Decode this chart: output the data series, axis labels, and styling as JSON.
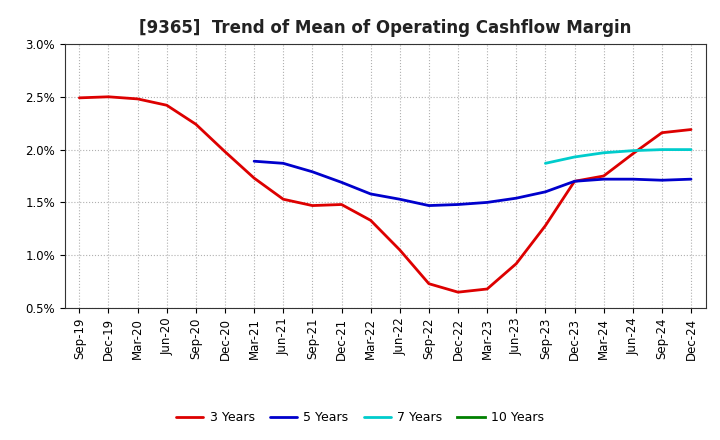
{
  "title": "[9365]  Trend of Mean of Operating Cashflow Margin",
  "ylim": [
    0.005,
    0.03
  ],
  "yticks": [
    0.005,
    0.01,
    0.015,
    0.02,
    0.025,
    0.03
  ],
  "ytick_labels": [
    "0.5%",
    "1.0%",
    "1.5%",
    "2.0%",
    "2.5%",
    "3.0%"
  ],
  "background_color": "#ffffff",
  "grid_color": "#b0b0b0",
  "x_labels": [
    "Sep-19",
    "Dec-19",
    "Mar-20",
    "Jun-20",
    "Sep-20",
    "Dec-20",
    "Mar-21",
    "Jun-21",
    "Sep-21",
    "Dec-21",
    "Mar-22",
    "Jun-22",
    "Sep-22",
    "Dec-22",
    "Mar-23",
    "Jun-23",
    "Sep-23",
    "Dec-23",
    "Mar-24",
    "Jun-24",
    "Sep-24",
    "Dec-24"
  ],
  "series_3y": {
    "color": "#dd0000",
    "label": "3 Years",
    "x": [
      0,
      1,
      2,
      3,
      4,
      5,
      6,
      7,
      8,
      9,
      10,
      11,
      12,
      13,
      14,
      15,
      16,
      17,
      18,
      19,
      20,
      21
    ],
    "y": [
      0.0249,
      0.025,
      0.0248,
      0.0242,
      0.0224,
      0.0198,
      0.0173,
      0.0153,
      0.0147,
      0.0148,
      0.0133,
      0.0105,
      0.0073,
      0.0065,
      0.0068,
      0.0092,
      0.0128,
      0.017,
      0.0175,
      0.0196,
      0.0216,
      0.0219
    ]
  },
  "series_5y": {
    "color": "#0000cc",
    "label": "5 Years",
    "x": [
      6,
      7,
      8,
      9,
      10,
      11,
      12,
      13,
      14,
      15,
      16,
      17,
      18,
      19,
      20,
      21
    ],
    "y": [
      0.0189,
      0.0187,
      0.0179,
      0.0169,
      0.0158,
      0.0153,
      0.0147,
      0.0148,
      0.015,
      0.0154,
      0.016,
      0.017,
      0.0172,
      0.0172,
      0.0171,
      0.0172
    ]
  },
  "series_7y": {
    "color": "#00cccc",
    "label": "7 Years",
    "x": [
      16,
      17,
      18,
      19,
      20,
      21
    ],
    "y": [
      0.0187,
      0.0193,
      0.0197,
      0.0199,
      0.02,
      0.02
    ]
  },
  "series_10y": {
    "color": "#008000",
    "label": "10 Years",
    "x": [],
    "y": []
  },
  "linewidth": 2.0,
  "title_fontsize": 12,
  "tick_fontsize": 8.5,
  "legend_fontsize": 9
}
